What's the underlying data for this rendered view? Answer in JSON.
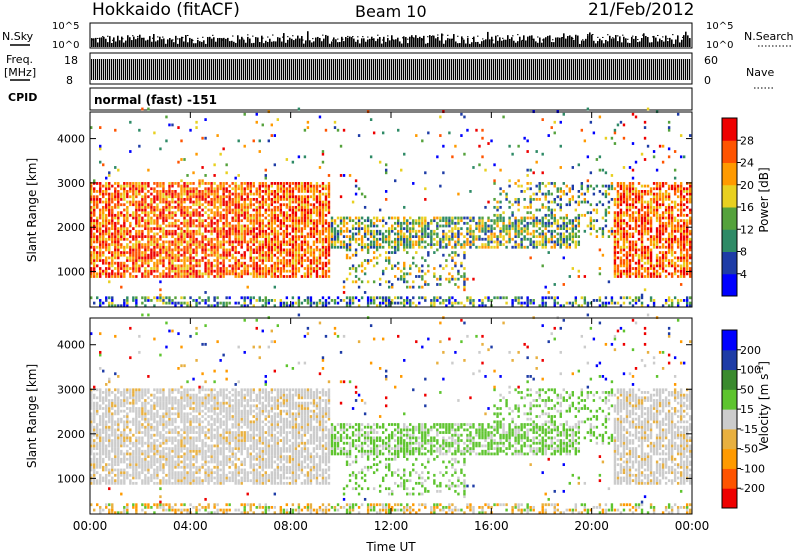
{
  "header": {
    "station": "Hokkaido (fitACF)",
    "beam": "Beam 10",
    "date": "21/Feb/2012"
  },
  "strips": {
    "nsky_label": "N.Sky",
    "nsearch_label": "N.Search",
    "nsky_ticks": [
      "10^5",
      "10^0"
    ],
    "nsearch_ticks": [
      "10^5",
      "10^0"
    ],
    "freq_label": "Freq.",
    "freq_unit": "[MHz]",
    "freq_ticks": [
      "18",
      "8"
    ],
    "nave_label": "Nave",
    "nave_ticks": [
      "60",
      "0"
    ],
    "cpid_label": "CPID",
    "cpid_text": "normal (fast) -151"
  },
  "chart_data": [
    {
      "type": "heatmap",
      "name": "power",
      "ylabel": "Slant Range [km]",
      "xlabel": "",
      "yticks": [
        "1000",
        "2000",
        "3000",
        "4000"
      ],
      "ylim": [
        200,
        4600
      ],
      "colorbar_label": "Power [dB]",
      "colorbar_ticks": [
        "28",
        "24",
        "20",
        "16",
        "12",
        "8",
        "4"
      ],
      "colorbar_colors": [
        "#0000ff",
        "#1e3ca6",
        "#2e8a66",
        "#55a23c",
        "#e8d020",
        "#ff9a00",
        "#ff5400",
        "#ee0000"
      ]
    },
    {
      "type": "heatmap",
      "name": "velocity",
      "ylabel": "Slant Range [km]",
      "xlabel": "Time UT",
      "xticks": [
        "00:00",
        "04:00",
        "08:00",
        "12:00",
        "16:00",
        "20:00",
        "00:00"
      ],
      "yticks": [
        "1000",
        "2000",
        "3000",
        "4000"
      ],
      "ylim": [
        200,
        4600
      ],
      "colorbar_label": "Velocity [m s",
      "colorbar_unit_exp": "-1",
      "colorbar_ticks": [
        "200",
        "100",
        "50",
        "15",
        "-15",
        "-50",
        "-100",
        "-200"
      ],
      "colorbar_colors": [
        "#ee0000",
        "#ff5400",
        "#ff9a00",
        "#e8b040",
        "#cccccc",
        "#5ec42e",
        "#3a8a2e",
        "#1e3ca6",
        "#0000ff"
      ]
    }
  ]
}
